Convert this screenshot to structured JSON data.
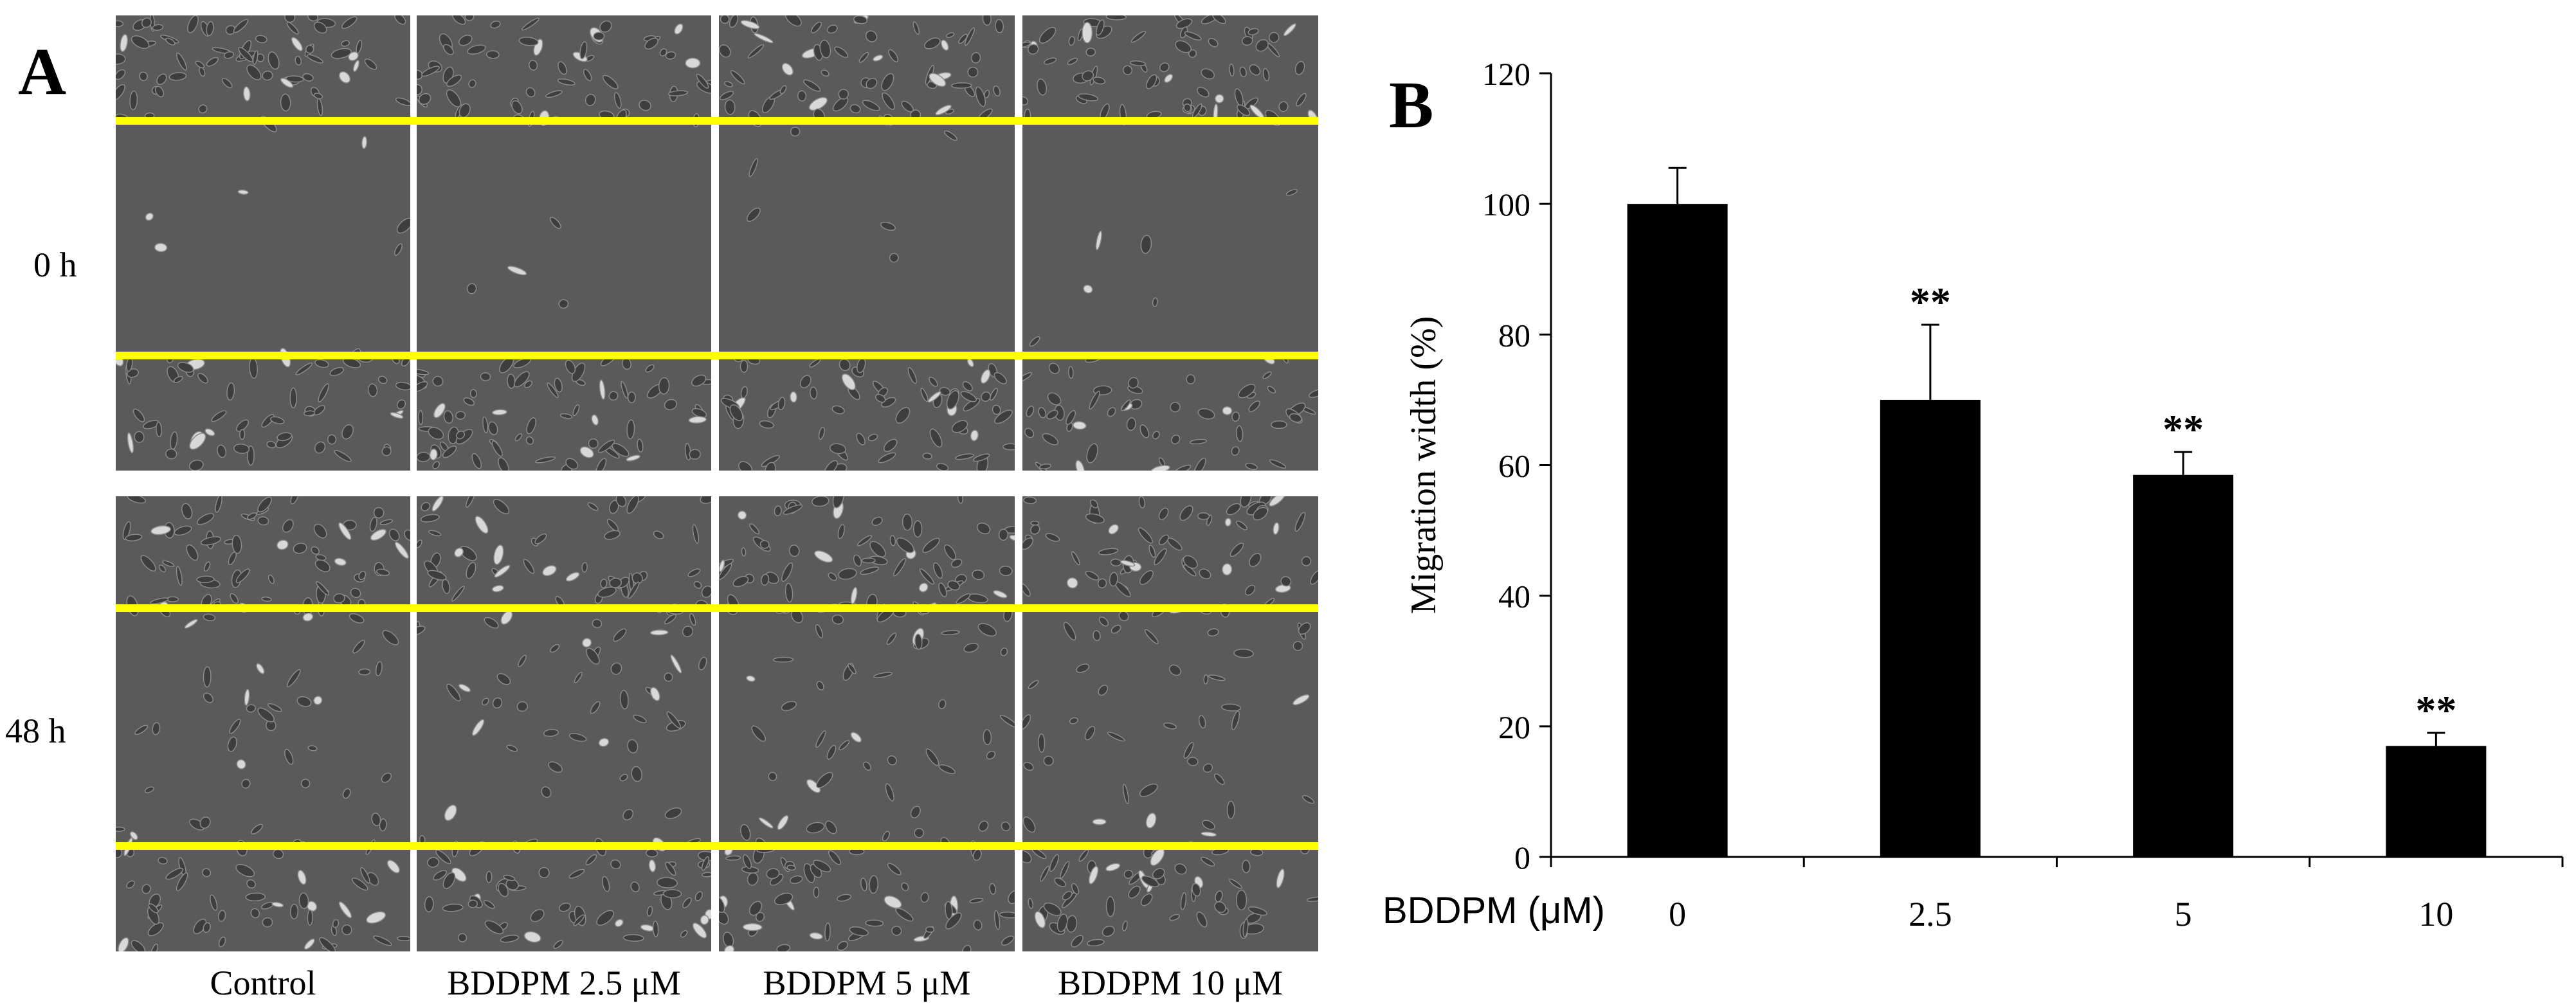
{
  "panel_a": {
    "label": "A",
    "row_labels": [
      "0 h",
      "48 h"
    ],
    "column_labels": [
      "Control",
      "BDDPM 2.5 μM",
      "BDDPM 5 μM",
      "BDDPM 10 μM"
    ],
    "line_color": "#ffff00",
    "image_tone": "#5a5a5a"
  },
  "panel_b": {
    "label": "B",
    "x_prefix_label": "BDDPM (μM)"
  },
  "chart_data": {
    "type": "bar",
    "title": "",
    "xlabel": "BDDPM (μM)",
    "ylabel": "Migration width (%)",
    "categories": [
      "0",
      "2.5",
      "5",
      "10"
    ],
    "values": [
      100,
      70,
      58.5,
      17
    ],
    "errors": [
      5.5,
      11.5,
      3.5,
      2
    ],
    "significance": [
      "",
      "**",
      "**",
      "**"
    ],
    "ylim": [
      0,
      120
    ],
    "yticks": [
      0,
      20,
      40,
      60,
      80,
      100,
      120
    ],
    "bar_color": "#000000",
    "grid": false,
    "legend": "none"
  }
}
